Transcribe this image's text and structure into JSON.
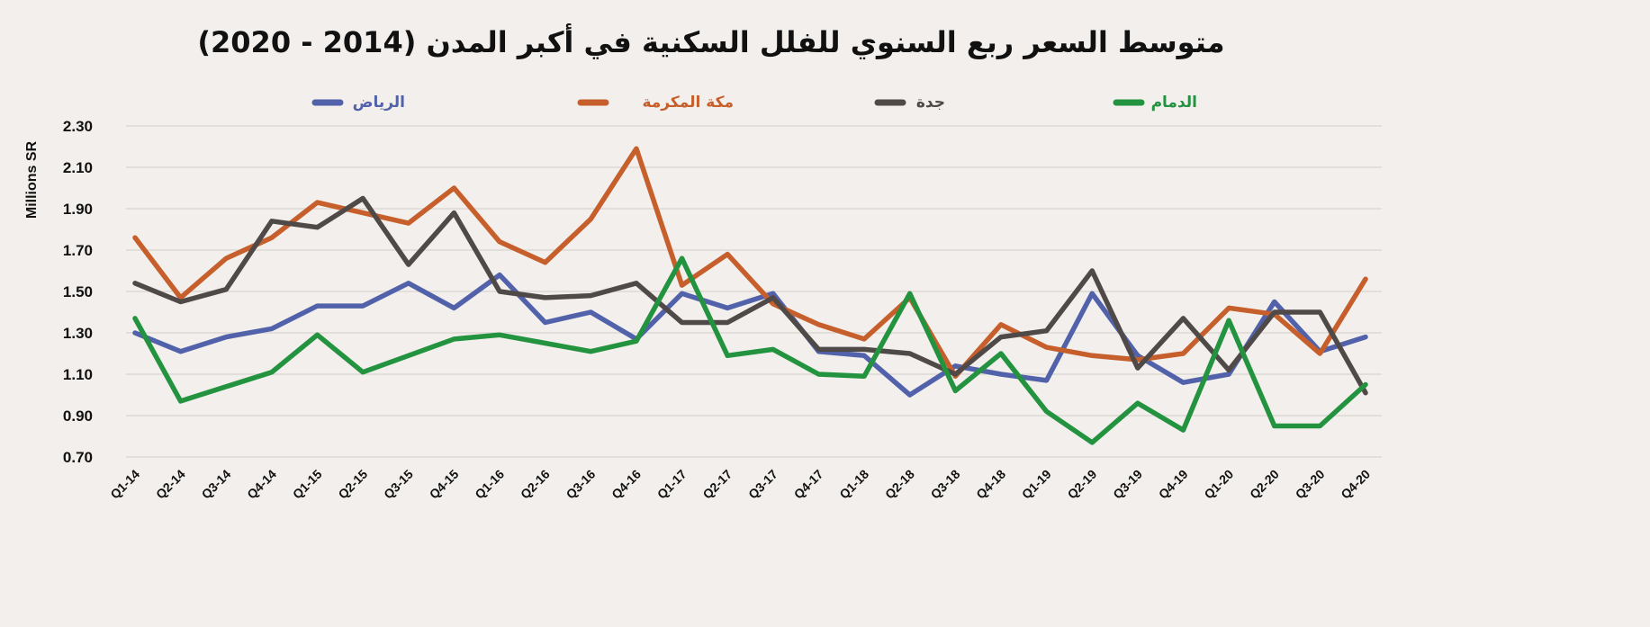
{
  "chart_data": {
    "type": "line",
    "title": "متوسط السعر ربع السنوي للفلل السكنية في أكبر المدن (2014 - 2020)",
    "ylabel": "Millions SR",
    "xlabel": "",
    "ylim": [
      0.7,
      2.3
    ],
    "yticks": [
      "0.70",
      "0.90",
      "1.10",
      "1.30",
      "1.50",
      "1.70",
      "1.90",
      "2.10",
      "2.30"
    ],
    "grid": true,
    "legend_position": "top",
    "categories": [
      "Q1-14",
      "Q2-14",
      "Q3-14",
      "Q4-14",
      "Q1-15",
      "Q2-15",
      "Q3-15",
      "Q4-15",
      "Q1-16",
      "Q2-16",
      "Q3-16",
      "Q4-16",
      "Q1-17",
      "Q2-17",
      "Q3-17",
      "Q4-17",
      "Q1-18",
      "Q2-18",
      "Q3-18",
      "Q4-18",
      "Q1-19",
      "Q2-19",
      "Q3-19",
      "Q4-19",
      "Q1-20",
      "Q2-20",
      "Q3-20",
      "Q4-20"
    ],
    "series": [
      {
        "name": "الرياض",
        "color": "#5262aa",
        "values": [
          1.3,
          1.21,
          1.28,
          1.32,
          1.43,
          1.43,
          1.54,
          1.42,
          1.58,
          1.35,
          1.4,
          1.27,
          1.49,
          1.42,
          1.49,
          1.21,
          1.19,
          1.0,
          1.14,
          1.1,
          1.07,
          1.49,
          1.19,
          1.06,
          1.1,
          1.45,
          1.21,
          1.28
        ]
      },
      {
        "name": "مكة المكرمة",
        "color": "#c65f2b",
        "values": [
          1.76,
          1.47,
          1.66,
          1.76,
          1.93,
          1.88,
          1.83,
          2.0,
          1.74,
          1.64,
          1.85,
          2.19,
          1.53,
          1.68,
          1.44,
          1.34,
          1.27,
          1.47,
          1.09,
          1.34,
          1.23,
          1.19,
          1.17,
          1.2,
          1.42,
          1.39,
          1.2,
          1.56
        ]
      },
      {
        "name": "جدة",
        "color": "#4f4a47",
        "values": [
          1.54,
          1.45,
          1.51,
          1.84,
          1.81,
          1.95,
          1.63,
          1.88,
          1.5,
          1.47,
          1.48,
          1.54,
          1.35,
          1.35,
          1.47,
          1.22,
          1.22,
          1.2,
          1.1,
          1.28,
          1.31,
          1.6,
          1.13,
          1.37,
          1.12,
          1.4,
          1.4,
          1.01
        ]
      },
      {
        "name": "الدمام",
        "color": "#23933f",
        "values": [
          1.37,
          0.97,
          1.04,
          1.11,
          1.29,
          1.11,
          1.19,
          1.27,
          1.29,
          1.25,
          1.21,
          1.26,
          1.66,
          1.19,
          1.22,
          1.1,
          1.09,
          1.49,
          1.02,
          1.2,
          0.92,
          0.77,
          0.96,
          0.83,
          1.36,
          0.85,
          0.85,
          1.05
        ]
      }
    ]
  }
}
